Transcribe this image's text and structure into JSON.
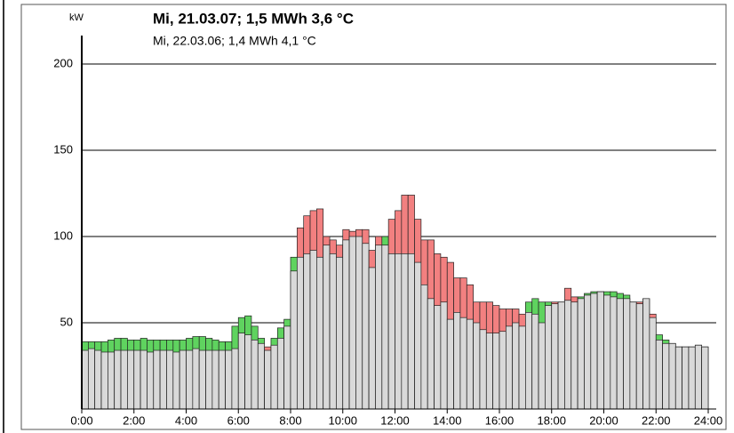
{
  "chart_data": {
    "type": "bar",
    "title": "Mi, 21.03.07; 1,5 MWh   3,6 °C",
    "subtitle": "Mi, 22.03.06; 1,4 MWh   4,1 °C",
    "y_label": "kW",
    "xlim": [
      0,
      24
    ],
    "xticks": [
      {
        "value": 0,
        "label": "0:00"
      },
      {
        "value": 2,
        "label": "2:00"
      },
      {
        "value": 4,
        "label": "4:00"
      },
      {
        "value": 6,
        "label": "6:00"
      },
      {
        "value": 8,
        "label": "8:00"
      },
      {
        "value": 10,
        "label": "10:00"
      },
      {
        "value": 12,
        "label": "12:00"
      },
      {
        "value": 14,
        "label": "14:00"
      },
      {
        "value": 16,
        "label": "16:00"
      },
      {
        "value": 18,
        "label": "18:00"
      },
      {
        "value": 20,
        "label": "20:00"
      },
      {
        "value": 22,
        "label": "22:00"
      },
      {
        "value": 24,
        "label": "24:00"
      }
    ],
    "ylim": [
      0,
      200
    ],
    "yticks": [
      50,
      100,
      150,
      200
    ],
    "grid": true,
    "base_color": "#d9d9d9",
    "increase_color": "#f28080",
    "decrease_color": "#5fd35f",
    "x": [
      0,
      0.25,
      0.5,
      0.75,
      1,
      1.25,
      1.5,
      1.75,
      2,
      2.25,
      2.5,
      2.75,
      3,
      3.25,
      3.5,
      3.75,
      4,
      4.25,
      4.5,
      4.75,
      5,
      5.25,
      5.5,
      5.75,
      6,
      6.25,
      6.5,
      6.75,
      7,
      7.25,
      7.5,
      7.75,
      8,
      8.25,
      8.5,
      8.75,
      9,
      9.25,
      9.5,
      9.75,
      10,
      10.25,
      10.5,
      10.75,
      11,
      11.25,
      11.5,
      11.75,
      12,
      12.25,
      12.5,
      12.75,
      13,
      13.25,
      13.5,
      13.75,
      14,
      14.25,
      14.5,
      14.75,
      15,
      15.25,
      15.5,
      15.75,
      16,
      16.25,
      16.5,
      16.75,
      17,
      17.25,
      17.5,
      17.75,
      18,
      18.25,
      18.5,
      18.75,
      19,
      19.25,
      19.5,
      19.75,
      20,
      20.25,
      20.5,
      20.75,
      21,
      21.25,
      21.5,
      21.75,
      22,
      22.25,
      22.5,
      22.75,
      23,
      23.25,
      23.5,
      23.75
    ],
    "bar_width": 0.25,
    "series": [
      {
        "name": "Mi, 21.03.07; 1,5 MWh   3,6 °C",
        "values": [
          34,
          35,
          34,
          33,
          33,
          34,
          34,
          34,
          34,
          34,
          33,
          34,
          34,
          34,
          33,
          34,
          34,
          35,
          34,
          34,
          34,
          34,
          34,
          35,
          44,
          43,
          40,
          38,
          36,
          37,
          41,
          48,
          80,
          105,
          112,
          115,
          116,
          100,
          98,
          95,
          104,
          103,
          104,
          104,
          92,
          100,
          95,
          110,
          115,
          124,
          124,
          110,
          98,
          98,
          90,
          88,
          85,
          76,
          76,
          72,
          62,
          62,
          62,
          60,
          58,
          58,
          58,
          55,
          56,
          55,
          50,
          60,
          62,
          62,
          70,
          65,
          64,
          66,
          67,
          68,
          66,
          65,
          64,
          64,
          62,
          62,
          64,
          55,
          40,
          38,
          38,
          36,
          36,
          36,
          37,
          36
        ]
      },
      {
        "name": "Mi, 22.03.06; 1,4 MWh   4,1 °C",
        "values": [
          39,
          39,
          39,
          39,
          40,
          41,
          41,
          40,
          40,
          41,
          40,
          40,
          40,
          40,
          40,
          40,
          41,
          42,
          42,
          41,
          40,
          39,
          39,
          48,
          53,
          54,
          48,
          41,
          34,
          41,
          47,
          52,
          88,
          88,
          90,
          92,
          88,
          95,
          90,
          88,
          98,
          100,
          100,
          96,
          82,
          95,
          100,
          90,
          90,
          90,
          90,
          85,
          72,
          64,
          60,
          62,
          52,
          56,
          53,
          52,
          50,
          46,
          44,
          44,
          45,
          48,
          50,
          48,
          62,
          64,
          62,
          62,
          61,
          62,
          63,
          62,
          65,
          67,
          68,
          68,
          68,
          68,
          67,
          66,
          62,
          61,
          64,
          53,
          43,
          40,
          38,
          36,
          36,
          36,
          37,
          36
        ]
      }
    ]
  }
}
